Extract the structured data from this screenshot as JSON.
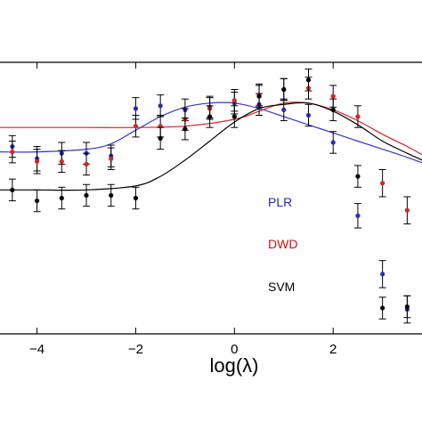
{
  "chart_data": {
    "type": "scatter",
    "title": "",
    "xlabel": "log(λ)",
    "ylabel": "",
    "xlim": [
      -4.75,
      3.8
    ],
    "ylim": [
      0.0,
      1.0
    ],
    "x_ticks": [
      -4,
      -2,
      0,
      2
    ],
    "x_tick_labels": [
      "−4",
      "−2",
      "0",
      "2"
    ],
    "grid": false,
    "legend_position": "lower-right",
    "series": [
      {
        "name": "PLR",
        "color": "#2b2bb5",
        "x": [
          -4.5,
          -4.0,
          -3.5,
          -3.0,
          -2.5,
          -2.0,
          -1.5,
          -1.0,
          -0.5,
          0.0,
          0.5,
          1.0,
          1.5,
          2.0,
          2.5,
          3.0,
          3.5
        ],
        "y": [
          0.69,
          0.645,
          0.665,
          0.665,
          0.655,
          0.83,
          0.84,
          0.825,
          0.835,
          0.85,
          0.845,
          0.825,
          0.805,
          0.705,
          0.435,
          0.22,
          0.09
        ],
        "err": [
          0.04,
          0.045,
          0.04,
          0.04,
          0.04,
          0.04,
          0.04,
          0.04,
          0.04,
          0.04,
          0.04,
          0.04,
          0.04,
          0.04,
          0.045,
          0.05,
          0.05
        ]
      },
      {
        "name": "DWD",
        "color": "#d42424",
        "x": [
          -4.5,
          -4.0,
          -3.5,
          -3.0,
          -2.5,
          -2.0,
          -1.5,
          -1.0,
          -0.5,
          0.0,
          0.5,
          1.0,
          1.5,
          2.0,
          2.5,
          3.0,
          3.5
        ],
        "y": [
          0.67,
          0.635,
          0.635,
          0.625,
          0.645,
          0.765,
          0.765,
          0.79,
          0.83,
          0.86,
          0.88,
          0.9,
          0.905,
          0.875,
          0.8,
          0.555,
          0.455
        ],
        "err": [
          0.04,
          0.045,
          0.04,
          0.04,
          0.04,
          0.04,
          0.04,
          0.04,
          0.04,
          0.04,
          0.04,
          0.04,
          0.04,
          0.04,
          0.04,
          0.05,
          0.05
        ]
      },
      {
        "name": "SVM",
        "color": "#000000",
        "x": [
          -4.5,
          -4.0,
          -3.5,
          -3.0,
          -2.5,
          -2.0,
          -1.5,
          -1.0,
          -0.5,
          0.0,
          0.5,
          1.0,
          1.5,
          2.0,
          2.5,
          3.0,
          3.5
        ],
        "y": [
          0.53,
          0.49,
          0.5,
          0.51,
          0.51,
          0.5,
          0.72,
          0.755,
          0.8,
          0.8,
          0.875,
          0.9,
          0.935,
          0.825,
          0.58,
          0.095,
          0.1
        ],
        "err": [
          0.04,
          0.04,
          0.04,
          0.04,
          0.04,
          0.04,
          0.04,
          0.04,
          0.04,
          0.04,
          0.04,
          0.04,
          0.04,
          0.04,
          0.04,
          0.04,
          0.04
        ]
      }
    ],
    "curves": [
      {
        "name": "PLR fit",
        "color": "#3333cc",
        "x": [
          -4.75,
          -4.0,
          -3.0,
          -2.5,
          -2.0,
          -1.5,
          -1.0,
          -0.5,
          0.0,
          0.5,
          1.0,
          1.5,
          2.0,
          2.5,
          3.0,
          3.5,
          3.8
        ],
        "y": [
          0.67,
          0.67,
          0.68,
          0.7,
          0.75,
          0.8,
          0.835,
          0.85,
          0.85,
          0.83,
          0.8,
          0.77,
          0.74,
          0.71,
          0.68,
          0.65,
          0.63
        ]
      },
      {
        "name": "DWD fit",
        "color": "#d42424",
        "x": [
          -4.75,
          -4.0,
          -3.0,
          -2.0,
          -1.0,
          0.0,
          0.5,
          1.0,
          1.5,
          2.0,
          2.5,
          3.0,
          3.5,
          3.8
        ],
        "y": [
          0.76,
          0.76,
          0.76,
          0.76,
          0.765,
          0.79,
          0.82,
          0.85,
          0.85,
          0.825,
          0.785,
          0.735,
          0.69,
          0.66
        ]
      },
      {
        "name": "SVM fit",
        "color": "#000000",
        "x": [
          -4.75,
          -4.0,
          -3.0,
          -2.0,
          -1.5,
          -1.0,
          -0.5,
          0.0,
          0.5,
          1.0,
          1.5,
          2.0,
          2.5,
          3.0,
          3.5,
          3.8
        ],
        "y": [
          0.53,
          0.53,
          0.53,
          0.545,
          0.58,
          0.64,
          0.71,
          0.78,
          0.83,
          0.845,
          0.85,
          0.82,
          0.77,
          0.71,
          0.665,
          0.64
        ]
      }
    ],
    "legend": [
      {
        "label": "PLR",
        "color": "#2222cc"
      },
      {
        "label": "DWD",
        "color": "#cc1111"
      },
      {
        "label": "SVM",
        "color": "#000000"
      }
    ]
  }
}
